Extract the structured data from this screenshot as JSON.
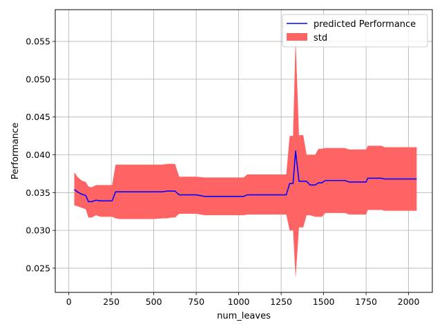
{
  "chart_data": {
    "type": "line",
    "title": "",
    "xlabel": "num_leaves",
    "ylabel": "Performance",
    "xlim": [
      -80,
      2140
    ],
    "ylim": [
      0.0218,
      0.0592
    ],
    "x_ticks": [
      0,
      250,
      500,
      750,
      1000,
      1250,
      1500,
      1750,
      2000
    ],
    "y_ticks": [
      0.025,
      0.03,
      0.035,
      0.04,
      0.045,
      0.05,
      0.055
    ],
    "x_tick_labels": [
      "0",
      "250",
      "500",
      "750",
      "1000",
      "1250",
      "1500",
      "1750",
      "2000"
    ],
    "y_tick_labels": [
      "0.025",
      "0.030",
      "0.035",
      "0.040",
      "0.045",
      "0.050",
      "0.055"
    ],
    "grid": true,
    "legend_position": "top-right",
    "series": [
      {
        "name": "predicted Performance",
        "kind": "line",
        "color": "#0000ff",
        "x": [
          32,
          50,
          75,
          100,
          115,
          135,
          160,
          185,
          210,
          255,
          275,
          300,
          350,
          400,
          450,
          500,
          550,
          580,
          600,
          625,
          650,
          700,
          750,
          800,
          850,
          900,
          950,
          1000,
          1030,
          1050,
          1100,
          1150,
          1200,
          1250,
          1280,
          1300,
          1310,
          1320,
          1335,
          1355,
          1380,
          1400,
          1420,
          1450,
          1470,
          1490,
          1510,
          1550,
          1600,
          1625,
          1650,
          1700,
          1750,
          1760,
          1800,
          1840,
          1860,
          1900,
          1950,
          2000,
          2048
        ],
        "y": [
          0.0354,
          0.0351,
          0.0348,
          0.0346,
          0.0338,
          0.0338,
          0.034,
          0.0339,
          0.0339,
          0.0339,
          0.0351,
          0.0351,
          0.0351,
          0.0351,
          0.0351,
          0.0351,
          0.0351,
          0.0352,
          0.0352,
          0.0352,
          0.0347,
          0.0347,
          0.0347,
          0.0345,
          0.0345,
          0.0345,
          0.0345,
          0.0345,
          0.0345,
          0.0347,
          0.0347,
          0.0347,
          0.0347,
          0.0347,
          0.0347,
          0.0362,
          0.0362,
          0.0362,
          0.0405,
          0.0365,
          0.0365,
          0.0365,
          0.036,
          0.036,
          0.0363,
          0.0363,
          0.0366,
          0.0366,
          0.0366,
          0.0366,
          0.0364,
          0.0364,
          0.0364,
          0.0369,
          0.0369,
          0.0369,
          0.0368,
          0.0368,
          0.0368,
          0.0368,
          0.0368
        ]
      },
      {
        "name": "std",
        "kind": "band",
        "color": "#ff6464",
        "x": [
          32,
          50,
          75,
          100,
          115,
          135,
          160,
          185,
          210,
          255,
          275,
          300,
          350,
          400,
          450,
          500,
          550,
          580,
          600,
          625,
          650,
          700,
          750,
          800,
          850,
          900,
          950,
          1000,
          1030,
          1050,
          1100,
          1150,
          1200,
          1250,
          1280,
          1300,
          1310,
          1320,
          1335,
          1355,
          1380,
          1400,
          1420,
          1450,
          1470,
          1490,
          1510,
          1550,
          1600,
          1625,
          1650,
          1700,
          1750,
          1760,
          1800,
          1840,
          1860,
          1900,
          1950,
          2000,
          2048
        ],
        "upper": [
          0.0377,
          0.0371,
          0.0366,
          0.0364,
          0.0358,
          0.0357,
          0.036,
          0.036,
          0.036,
          0.036,
          0.0387,
          0.0387,
          0.0387,
          0.0387,
          0.0387,
          0.0387,
          0.0387,
          0.0388,
          0.0388,
          0.0388,
          0.0371,
          0.0371,
          0.0371,
          0.037,
          0.037,
          0.037,
          0.037,
          0.037,
          0.037,
          0.0374,
          0.0374,
          0.0374,
          0.0374,
          0.0374,
          0.0374,
          0.0425,
          0.0425,
          0.0425,
          0.0554,
          0.0426,
          0.0426,
          0.04,
          0.04,
          0.04,
          0.0408,
          0.0408,
          0.0409,
          0.0409,
          0.0409,
          0.0409,
          0.0407,
          0.0407,
          0.0407,
          0.0412,
          0.0412,
          0.0412,
          0.041,
          0.041,
          0.041,
          0.041,
          0.041
        ],
        "lower": [
          0.0333,
          0.0332,
          0.033,
          0.0328,
          0.0317,
          0.0317,
          0.032,
          0.0318,
          0.0318,
          0.0318,
          0.0316,
          0.0315,
          0.0315,
          0.0315,
          0.0315,
          0.0315,
          0.0316,
          0.0316,
          0.0317,
          0.0317,
          0.0322,
          0.0322,
          0.0322,
          0.032,
          0.032,
          0.032,
          0.032,
          0.032,
          0.032,
          0.0321,
          0.0321,
          0.0321,
          0.0321,
          0.0321,
          0.0321,
          0.03,
          0.03,
          0.03,
          0.0237,
          0.0304,
          0.0304,
          0.032,
          0.032,
          0.0318,
          0.0318,
          0.0318,
          0.0323,
          0.0323,
          0.0323,
          0.0323,
          0.0321,
          0.0321,
          0.0321,
          0.0327,
          0.0327,
          0.0327,
          0.0326,
          0.0326,
          0.0326,
          0.0326,
          0.0326
        ]
      }
    ]
  }
}
